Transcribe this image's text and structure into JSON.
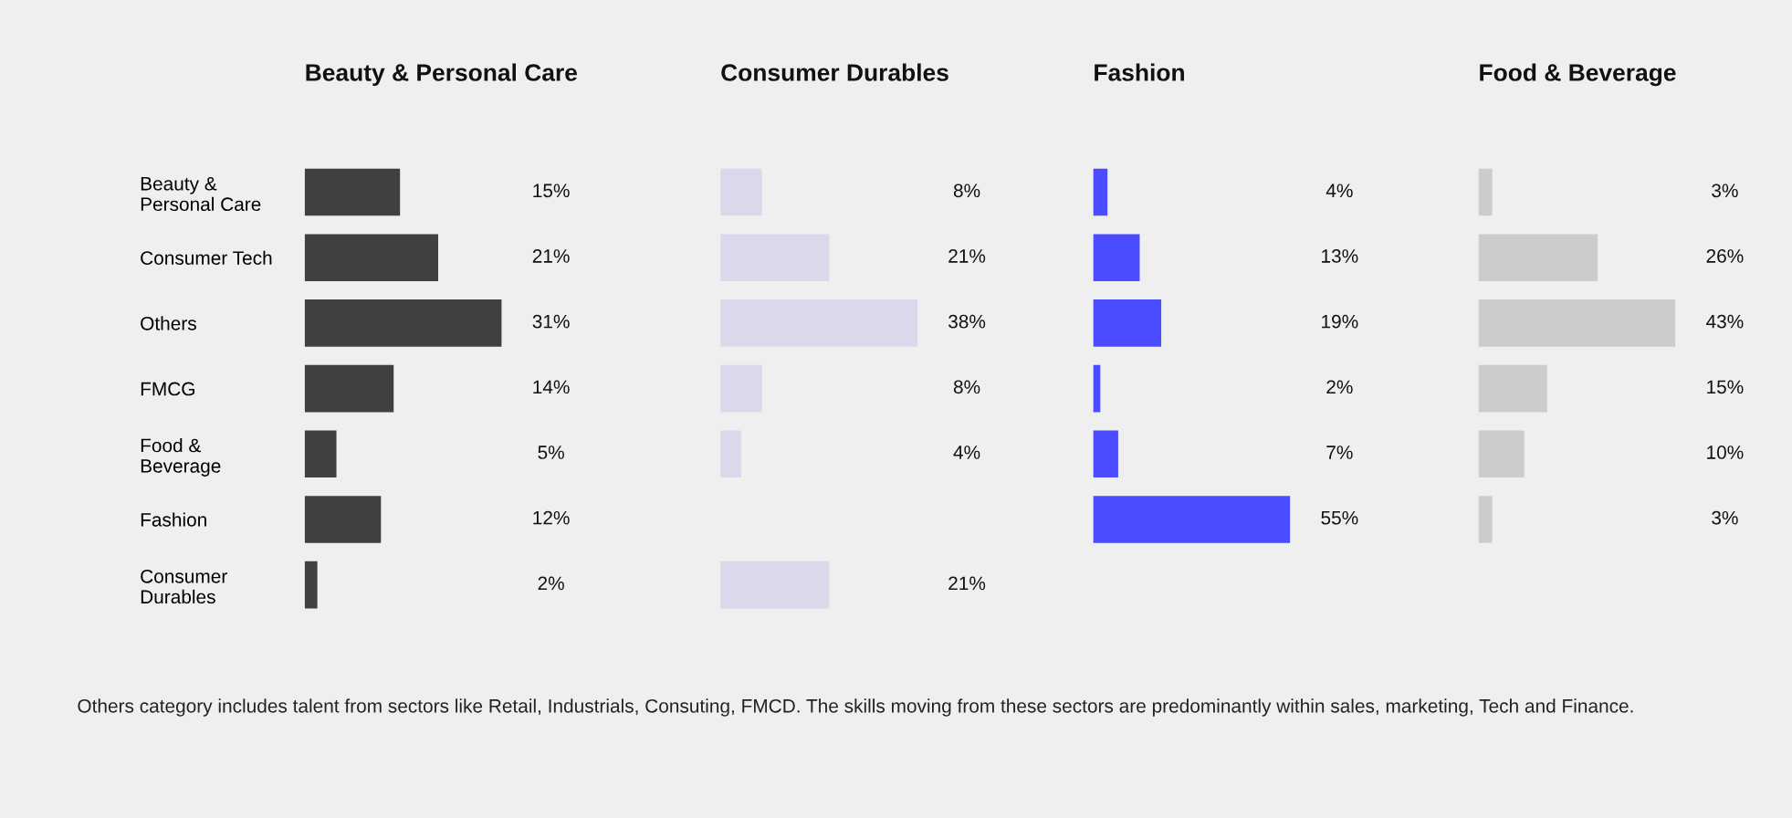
{
  "chart_data": [
    {
      "type": "bar",
      "orientation": "horizontal",
      "title": "Beauty & Personal Care",
      "categories": [
        "Beauty &\nPersonal Care",
        "Consumer Tech",
        "Others",
        "FMCG",
        "Food &\nBeverage",
        "Fashion",
        "Consumer\nDurables"
      ],
      "values": [
        15,
        21,
        31,
        14,
        5,
        12,
        2
      ],
      "value_labels": [
        "15%",
        "21%",
        "31%",
        "14%",
        "5%",
        "12%",
        "2%"
      ],
      "color": "#404040",
      "tick_labels": "y",
      "annotations": [
        "Others category includes talent from sectors like Retail, Industrials, Consuting, FMCD. The skills moving from these sectors are predominantly within sales, marketing, Tech and Finance."
      ]
    },
    {
      "type": "bar",
      "orientation": "horizontal",
      "title": "Consumer Durables",
      "values": [
        8,
        21,
        38,
        8,
        4,
        null,
        21
      ],
      "value_labels": [
        "8%",
        "21%",
        "38%",
        "8%",
        "4%",
        null,
        "21%"
      ],
      "color": "#dcd8ec",
      "tick_labels": false
    },
    {
      "type": "bar",
      "orientation": "horizontal",
      "title": "Fashion",
      "values": [
        4,
        13,
        19,
        2,
        7,
        55,
        null
      ],
      "value_labels": [
        "4%",
        "13%",
        "19%",
        "2%",
        "7%",
        "55%",
        null
      ],
      "color": "#4b4bff",
      "tick_labels": false
    },
    {
      "type": "bar",
      "orientation": "horizontal",
      "title": "Food & Beverage",
      "values": [
        3,
        26,
        43,
        15,
        10,
        3,
        null
      ],
      "value_labels": [
        "3%",
        "26%",
        "43%",
        "15%",
        "10%",
        "3%",
        null
      ],
      "color": "#cccccc",
      "tick_labels": false
    }
  ]
}
